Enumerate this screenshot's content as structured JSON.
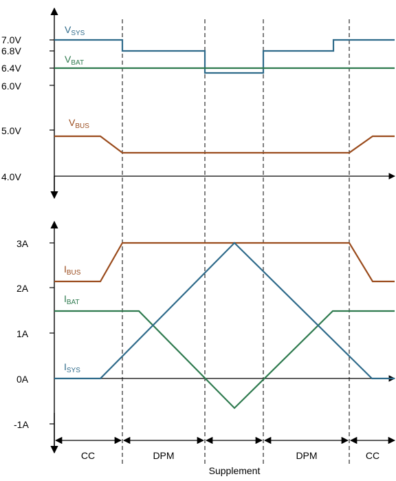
{
  "colors": {
    "sys": "#2e6a8a",
    "bat": "#2e7a4e",
    "bus": "#9a4b1c",
    "axis": "#000000"
  },
  "voltage_panel": {
    "y_ticks": [
      "7.0V",
      "6.8V",
      "6.4V",
      "6.0V",
      "5.0V",
      "4.0V"
    ],
    "labels": {
      "vsys": {
        "main": "V",
        "sub": "SYS"
      },
      "vbat": {
        "main": "V",
        "sub": "BAT"
      },
      "vbus": {
        "main": "V",
        "sub": "BUS"
      }
    }
  },
  "current_panel": {
    "y_ticks": [
      "3A",
      "2A",
      "1A",
      "0A",
      "-1A"
    ],
    "labels": {
      "ibus": {
        "main": "I",
        "sub": "BUS"
      },
      "ibat": {
        "main": "I",
        "sub": "BAT"
      },
      "isys": {
        "main": "I",
        "sub": "SYS"
      }
    }
  },
  "phases": {
    "labels": [
      "CC",
      "DPM",
      "",
      "DPM",
      "CC"
    ],
    "supplement": "Supplement"
  }
}
